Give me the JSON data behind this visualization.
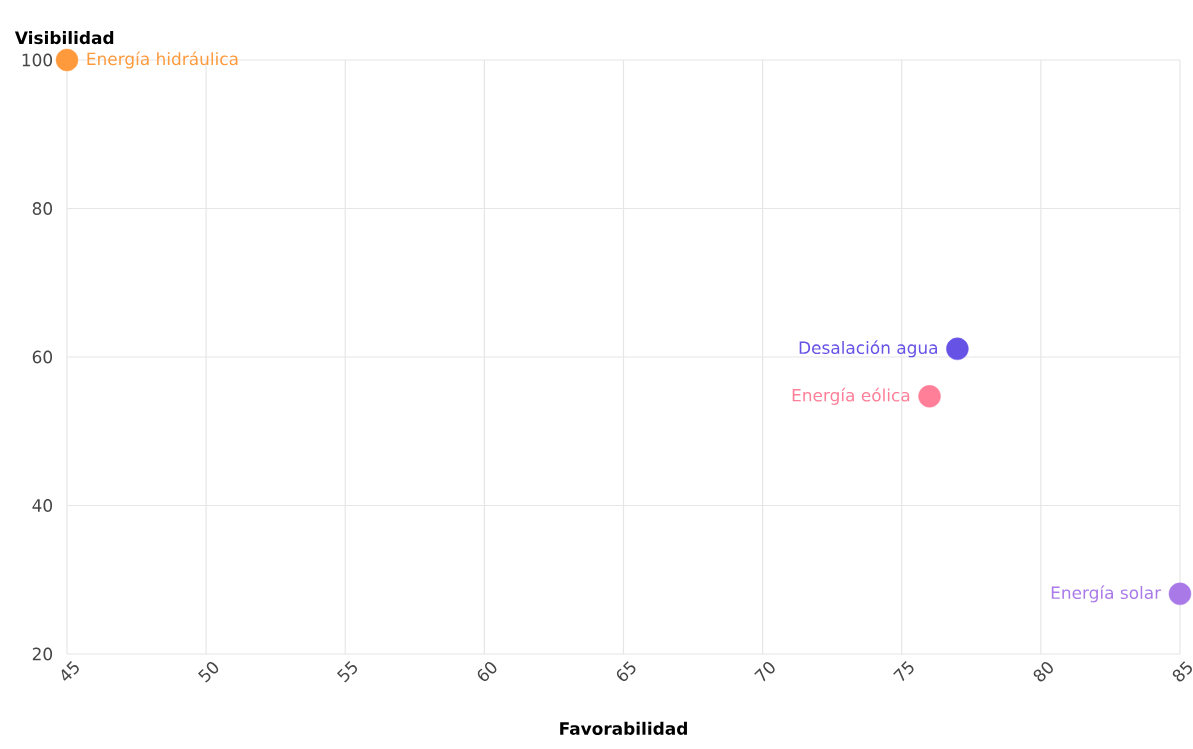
{
  "chart_data": {
    "type": "scatter",
    "xlabel": "Favorabilidad",
    "ylabel": "Visibilidad",
    "xlim": [
      45,
      85
    ],
    "ylim": [
      20,
      100
    ],
    "xticks": [
      45,
      50,
      55,
      60,
      65,
      70,
      75,
      80,
      85
    ],
    "yticks": [
      20,
      40,
      60,
      80,
      100
    ],
    "grid": true,
    "legend": "right",
    "series": [
      {
        "name": "Energía hidráulica",
        "color": "#ff9a3c",
        "x": [
          45
        ],
        "values": [
          100
        ]
      },
      {
        "name": "Desalación agua",
        "color": "#6653e6",
        "x": [
          77
        ],
        "values": [
          61.1
        ]
      },
      {
        "name": "Energía eólica",
        "color": "#ff7f98",
        "x": [
          76
        ],
        "values": [
          54.7
        ]
      },
      {
        "name": "Energía solar",
        "color": "#a979e8",
        "x": [
          85
        ],
        "values": [
          28.1
        ]
      }
    ]
  }
}
